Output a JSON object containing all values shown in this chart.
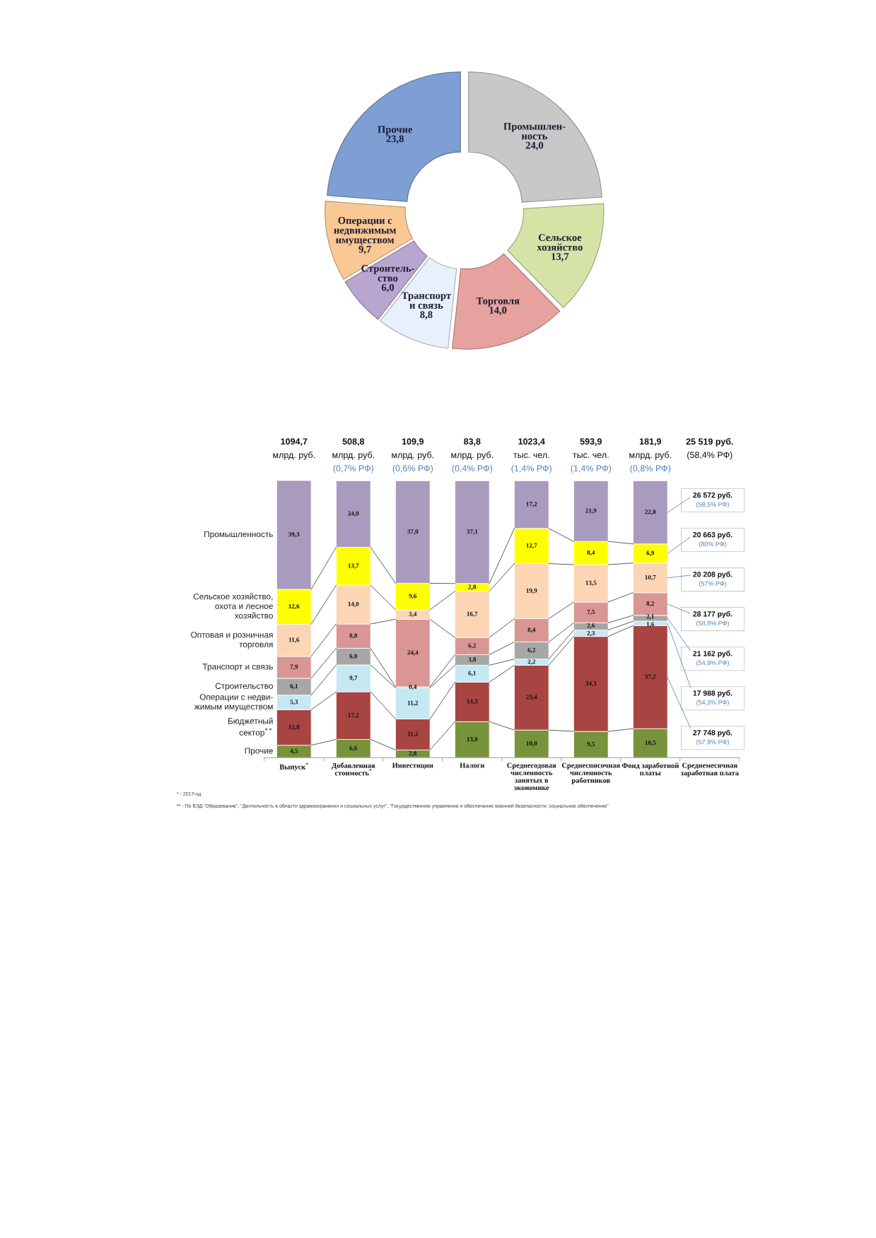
{
  "chart_data": [
    {
      "type": "donut",
      "categories": [
        "Промышлен-\nность",
        "Сельское\nхозяйство",
        "Торговля",
        "Транспорт\nи связь",
        "Строитель-\nство",
        "Операции с\nнедвижимым\nимуществом",
        "Прочие"
      ],
      "values": [
        24.0,
        13.7,
        14.0,
        8.8,
        6.0,
        9.7,
        23.8
      ],
      "value_labels": [
        "24,0",
        "13,7",
        "14,0",
        "8,8",
        "6,0",
        "9,7",
        "23,8"
      ],
      "colors": [
        "#c8c8c8",
        "#d5e4a6",
        "#e6a29e",
        "#e8f1fb",
        "#b9a6d0",
        "#fac894",
        "#7d9fd3"
      ]
    },
    {
      "type": "bar",
      "stacked": true,
      "tick_labels": "x",
      "ylim": [
        0,
        100.1
      ],
      "categories": [
        "Выпуск$^{*}$",
        "Добавленная\nстоимость$^{*}$",
        "Инвестиции",
        "Налоги",
        "Среднегодовая\nчисленность\nзанятых в\nэкономике",
        "Среднесписочная\nчисленность\nработников",
        "Фонд заработной\nплаты",
        "Среднемесячная\nзаработная плата"
      ],
      "series": [
        {
          "name": "Прочие",
          "color": "#77933c",
          "values": [
            4.5,
            6.6,
            2.8,
            13.0,
            10.0,
            9.5,
            10.5,
            null
          ],
          "value_labels": [
            "4,5",
            "6,6",
            "2,8",
            "13,0",
            "10,0",
            "9,5",
            "10,5",
            null
          ]
        },
        {
          "name": "Бюджетный\nсектор$^{**}$",
          "color": "#a84442",
          "values": [
            12.8,
            17.2,
            11.2,
            14.3,
            23.4,
            34.3,
            37.2,
            null
          ],
          "value_labels": [
            "12,8",
            "17,2",
            "11,2",
            "14,3",
            "23,4",
            "34,3",
            "37,2",
            null
          ]
        },
        {
          "name": "Операции с недви-\nжимым имуществом",
          "color": "#c5e8f2",
          "values": [
            5.3,
            9.7,
            11.2,
            6.1,
            2.2,
            2.3,
            1.6,
            null
          ],
          "value_labels": [
            "5,3",
            "9,7",
            "11,2",
            "6,1",
            "2,2",
            "2,3",
            "1,6",
            null
          ]
        },
        {
          "name": "Строительство",
          "color": "#a6a6a6",
          "values": [
            6.1,
            6.0,
            0.4,
            3.8,
            6.2,
            2.6,
            2.1,
            null
          ],
          "value_labels": [
            "6,1",
            "6,0",
            "0,4",
            "3,8",
            "6,2",
            "2,6",
            "2,1",
            null
          ]
        },
        {
          "name": "Транспорт и связь",
          "color": "#d99694",
          "values": [
            7.9,
            8.8,
            24.4,
            6.2,
            8.4,
            7.5,
            8.2,
            null
          ],
          "value_labels": [
            "7,9",
            "8,8",
            "24,4",
            "6,2",
            "8,4",
            "7,5",
            "8,2",
            null
          ]
        },
        {
          "name": "Оптовая и розничная\nторговля",
          "color": "#fcd5b5",
          "values": [
            11.6,
            14.0,
            3.4,
            16.7,
            19.9,
            13.5,
            10.7,
            null
          ],
          "value_labels": [
            "11,6",
            "14,0",
            "3,4",
            "16,7",
            "19,9",
            "13,5",
            "10,7",
            null
          ]
        },
        {
          "name": "Сельское хозяйство,\nохота и лесное\nхозяйство",
          "color": "#ffff00",
          "values": [
            12.6,
            13.7,
            9.6,
            2.8,
            12.7,
            8.4,
            6.9,
            null
          ],
          "value_labels": [
            "12,6",
            "13,7",
            "9,6",
            "2,8",
            "12,7",
            "8,4",
            "6,9",
            null
          ]
        },
        {
          "name": "Промышленность",
          "color": "#a99bbd",
          "values": [
            39.3,
            24.0,
            37.0,
            37.1,
            17.2,
            21.9,
            22.8,
            null
          ],
          "value_labels": [
            "39,3",
            "24,0",
            "37,0",
            "37,1",
            "17,2",
            "21,9",
            "22,8",
            null
          ]
        }
      ],
      "annotations": [
        "1094,7\nмлрд. руб.",
        "508,8\nмлрд. руб.\n(0,7% РФ)",
        "109,9\nмлрд. руб.\n(0,6% РФ)",
        "83,8\nмлрд. руб.\n(0,4% РФ)",
        "1023,4\nтыс. чел.\n(1,4% РФ)",
        "593,9\nтыс. чел.\n(1,4% РФ)",
        "181,9\nмлрд. руб.\n(0,8% РФ)",
        "25 519 руб.\n(58,4% РФ)",
        "26 572 руб.\n(58,5% РФ)",
        "20 663 руб.\n(80% РФ)",
        "20 208 руб.\n(57% РФ)",
        "28 177 руб.\n(58,8% РФ)",
        "21 162 руб.\n(54,9% РФ)",
        "17 988 руб.\n(54,3% РФ)",
        "27 748 руб.\n(57,9% РФ)",
        "* - 2017год",
        "** - По ВЭД \"Образование\", \"Деятельность в области здравоохранения и социальных услуг\", \"Государственное управление и обеспечение военной безопасности; социальное обеспечение\""
      ]
    }
  ]
}
